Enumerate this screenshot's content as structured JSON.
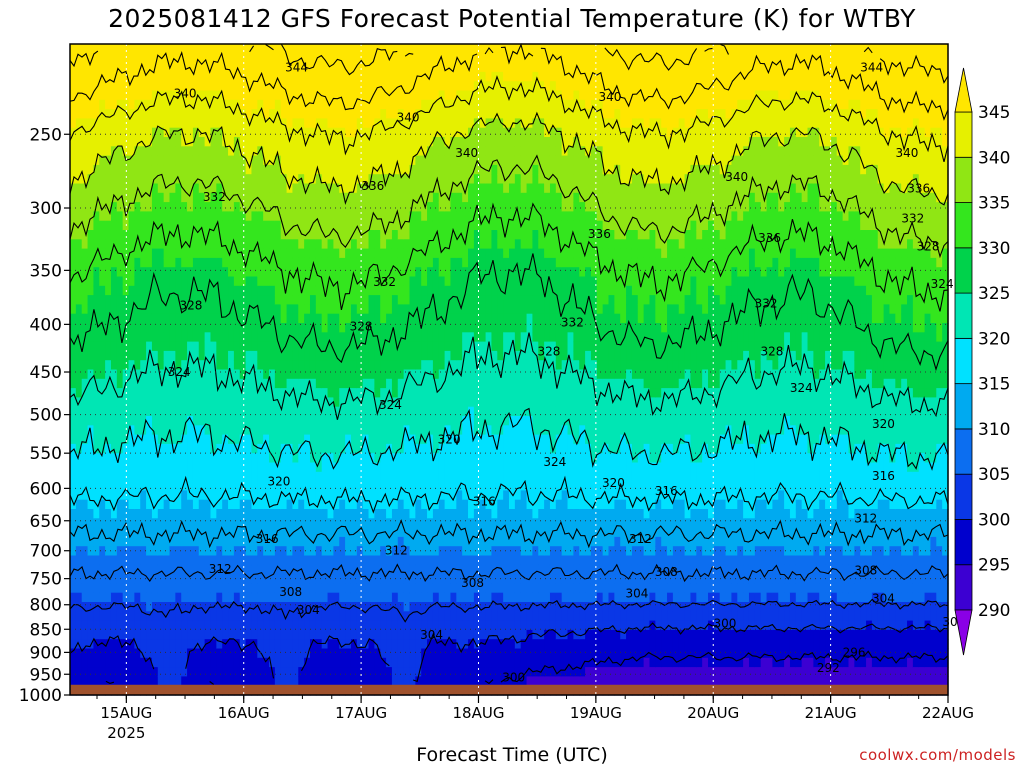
{
  "title": "2025081412 GFS Forecast Potential Temperature (K) for WTBY",
  "xlabel": "Forecast Time (UTC)",
  "credit": "coolwx.com/models",
  "chart_data": {
    "type": "heatmap",
    "title": "2025081412 GFS Forecast Potential Temperature (K) for WTBY",
    "xlabel": "Forecast Time (UTC)",
    "ylabel": "",
    "x_ticks": [
      {
        "label": "15AUG",
        "sub": "2025",
        "day": 15
      },
      {
        "label": "16AUG",
        "day": 16
      },
      {
        "label": "17AUG",
        "day": 17
      },
      {
        "label": "18AUG",
        "day": 18
      },
      {
        "label": "19AUG",
        "day": 19
      },
      {
        "label": "20AUG",
        "day": 20
      },
      {
        "label": "21AUG",
        "day": 21
      },
      {
        "label": "22AUG",
        "day": 22
      }
    ],
    "xlim": [
      14.52,
      22.0
    ],
    "y_ticks": [
      250,
      300,
      350,
      400,
      450,
      500,
      550,
      600,
      650,
      700,
      750,
      800,
      850,
      900,
      950,
      1000
    ],
    "ylim": [
      200,
      1000
    ],
    "y_scale": "log",
    "y_reversed": true,
    "ground_color": "#a0522d",
    "colorbar": {
      "levels": [
        290,
        295,
        300,
        305,
        310,
        315,
        320,
        325,
        330,
        335,
        340,
        345
      ],
      "colors": [
        "#8a00e6",
        "#3c00d2",
        "#0000cd",
        "#0a37e6",
        "#0c6ef0",
        "#00aaf0",
        "#00e1ff",
        "#00e6b4",
        "#00d24b",
        "#34e61e",
        "#90e614",
        "#e6f000",
        "#ffe600"
      ]
    },
    "contour_interval": 4,
    "contour_labels": [
      {
        "t": 15.5,
        "p": 226,
        "v": "340"
      },
      {
        "t": 16.45,
        "p": 212,
        "v": "344"
      },
      {
        "t": 17.4,
        "p": 240,
        "v": "340"
      },
      {
        "t": 17.9,
        "p": 262,
        "v": "340"
      },
      {
        "t": 19.12,
        "p": 228,
        "v": "340"
      },
      {
        "t": 21.35,
        "p": 212,
        "v": "344"
      },
      {
        "t": 20.2,
        "p": 278,
        "v": "340"
      },
      {
        "t": 21.65,
        "p": 262,
        "v": "340"
      },
      {
        "t": 15.75,
        "p": 292,
        "v": "332"
      },
      {
        "t": 17.1,
        "p": 284,
        "v": "336"
      },
      {
        "t": 19.03,
        "p": 320,
        "v": "336"
      },
      {
        "t": 20.48,
        "p": 323,
        "v": "336"
      },
      {
        "t": 21.75,
        "p": 286,
        "v": "336"
      },
      {
        "t": 21.7,
        "p": 308,
        "v": "332"
      },
      {
        "t": 21.83,
        "p": 330,
        "v": "328"
      },
      {
        "t": 15.55,
        "p": 382,
        "v": "328"
      },
      {
        "t": 17.2,
        "p": 360,
        "v": "332"
      },
      {
        "t": 17.0,
        "p": 402,
        "v": "328"
      },
      {
        "t": 18.8,
        "p": 398,
        "v": "332"
      },
      {
        "t": 18.6,
        "p": 428,
        "v": "328"
      },
      {
        "t": 20.45,
        "p": 380,
        "v": "332"
      },
      {
        "t": 20.5,
        "p": 428,
        "v": "328"
      },
      {
        "t": 21.95,
        "p": 362,
        "v": "324"
      },
      {
        "t": 15.45,
        "p": 450,
        "v": "324"
      },
      {
        "t": 17.25,
        "p": 488,
        "v": "324"
      },
      {
        "t": 17.75,
        "p": 532,
        "v": "320"
      },
      {
        "t": 18.65,
        "p": 562,
        "v": "324"
      },
      {
        "t": 20.75,
        "p": 468,
        "v": "324"
      },
      {
        "t": 21.45,
        "p": 512,
        "v": "320"
      },
      {
        "t": 21.45,
        "p": 582,
        "v": "316"
      },
      {
        "t": 16.3,
        "p": 590,
        "v": "320"
      },
      {
        "t": 18.05,
        "p": 620,
        "v": "316"
      },
      {
        "t": 19.15,
        "p": 592,
        "v": "320"
      },
      {
        "t": 19.6,
        "p": 604,
        "v": "316"
      },
      {
        "t": 21.3,
        "p": 646,
        "v": "312"
      },
      {
        "t": 16.2,
        "p": 680,
        "v": "316"
      },
      {
        "t": 15.8,
        "p": 732,
        "v": "312"
      },
      {
        "t": 17.3,
        "p": 700,
        "v": "312"
      },
      {
        "t": 19.38,
        "p": 680,
        "v": "312"
      },
      {
        "t": 16.4,
        "p": 775,
        "v": "308"
      },
      {
        "t": 16.55,
        "p": 810,
        "v": "304"
      },
      {
        "t": 17.95,
        "p": 758,
        "v": "308"
      },
      {
        "t": 19.6,
        "p": 738,
        "v": "308"
      },
      {
        "t": 19.35,
        "p": 778,
        "v": "304"
      },
      {
        "t": 21.3,
        "p": 735,
        "v": "308"
      },
      {
        "t": 21.45,
        "p": 788,
        "v": "304"
      },
      {
        "t": 17.6,
        "p": 862,
        "v": "304"
      },
      {
        "t": 20.1,
        "p": 838,
        "v": "300"
      },
      {
        "t": 22.05,
        "p": 835,
        "v": "300"
      },
      {
        "t": 21.2,
        "p": 900,
        "v": "296"
      },
      {
        "t": 20.98,
        "p": 935,
        "v": "292"
      },
      {
        "t": 18.3,
        "p": 958,
        "v": "300"
      }
    ]
  }
}
